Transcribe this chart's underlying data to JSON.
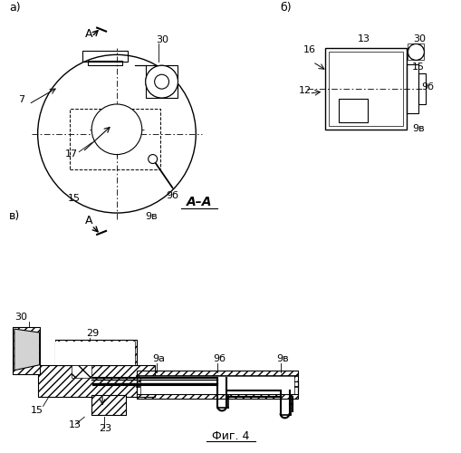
{
  "title": "Фиг. 4",
  "bg_color": "#ffffff",
  "line_color": "#000000",
  "hatch_color": "#000000",
  "fig_width": 5.1,
  "fig_height": 5.0,
  "dpi": 100,
  "labels": {
    "a": "а)",
    "b": "б)",
    "v": "в)",
    "AA": "А–А",
    "fig": "Фиг. 4"
  }
}
